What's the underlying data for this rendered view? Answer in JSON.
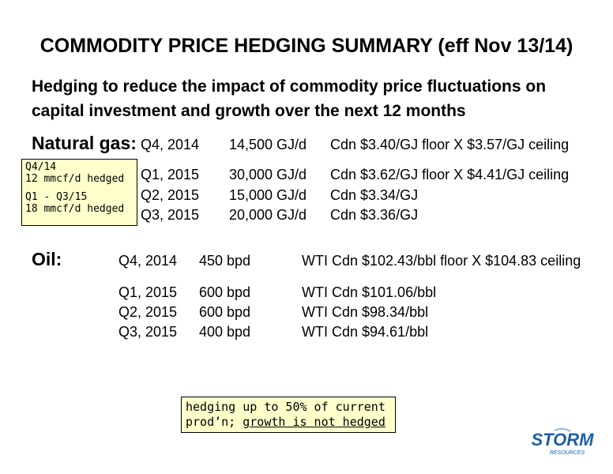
{
  "title": "COMMODITY PRICE HEDGING SUMMARY (eff Nov 13/14)",
  "subtitle": "Hedging to reduce the impact of commodity price fluctuations on capital investment and growth over the next 12 months",
  "natural_gas": {
    "label": "Natural gas:",
    "rows": [
      {
        "period": "Q4, 2014",
        "volume": "14,500 GJ/d",
        "price": "Cdn $3.40/GJ floor X $3.57/GJ ceiling"
      },
      {
        "period": "Q1, 2015",
        "volume": "30,000 GJ/d",
        "price": "Cdn $3.62/GJ floor X $4.41/GJ ceiling"
      },
      {
        "period": "Q2, 2015",
        "volume": "15,000 GJ/d",
        "price": "Cdn $3.34/GJ"
      },
      {
        "period": "Q3, 2015",
        "volume": "20,000 GJ/d",
        "price": "Cdn $3.36/GJ"
      }
    ],
    "note": {
      "line1": "Q4/14",
      "line2": "12 mmcf/d hedged",
      "line3": "Q1 - Q3/15",
      "line4": "18 mmcf/d hedged"
    }
  },
  "oil": {
    "label": "Oil:",
    "rows": [
      {
        "period": "Q4, 2014",
        "volume": "450 bpd",
        "price": "WTI Cdn $102.43/bbl floor X $104.83 ceiling"
      },
      {
        "period": "Q1, 2015",
        "volume": "600 bpd",
        "price": "WTI Cdn $101.06/bbl"
      },
      {
        "period": "Q2, 2015",
        "volume": "600 bpd",
        "price": "WTI Cdn $98.34/bbl"
      },
      {
        "period": "Q3, 2015",
        "volume": "400 bpd",
        "price": "WTI Cdn $94.61/bbl"
      }
    ]
  },
  "bottom_note": {
    "line1": "hedging up to 50% of current",
    "line2_plain": "prod’n; ",
    "line2_underlined": "growth is not hedged"
  },
  "logo": {
    "text": "STORM",
    "subtext": "RESOURCES",
    "colors": {
      "primary": "#1f5fa6",
      "accent": "#8fb5dc"
    }
  }
}
